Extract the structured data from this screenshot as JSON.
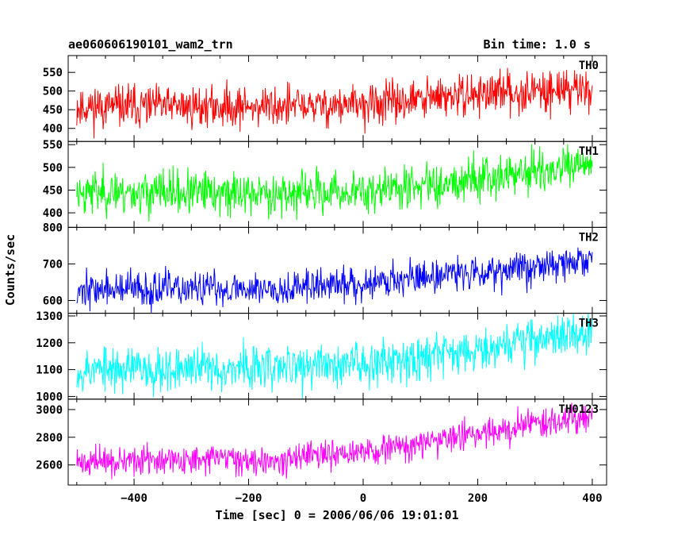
{
  "header": {
    "left_title": "ae060606190101_wam2_trn",
    "right_title": "Bin time: 1.0 s"
  },
  "chart_data": {
    "type": "line",
    "title": "ae060606190101_wam2_trn",
    "bin_time": "Bin time: 1.0 s",
    "xlabel": "Time [sec] 0 = 2006/06/06 19:01:01",
    "ylabel": "Counts/sec",
    "x_range": [
      -500,
      400
    ],
    "xlim": [
      -515,
      425
    ],
    "x_ticks": [
      -400,
      -200,
      0,
      200,
      400
    ],
    "x_tick_labels": [
      "−400",
      "−200",
      "0",
      "200",
      "400"
    ],
    "grid": false,
    "legend": "none",
    "panels": [
      {
        "name": "TH0",
        "color": "#ff0000",
        "ylim": [
          365,
          595
        ],
        "yticks": [
          400,
          450,
          500,
          550
        ],
        "ytick_labels": [
          "400",
          "450",
          "500",
          "550"
        ],
        "trend_x": [
          -500,
          -300,
          -100,
          0,
          100,
          200,
          300,
          400
        ],
        "trend_y": [
          458,
          458,
          460,
          462,
          477,
          492,
          500,
          510
        ],
        "noise_sd": 28,
        "seed": 11
      },
      {
        "name": "TH1",
        "color": "#00ff00",
        "ylim": [
          368,
          557
        ],
        "yticks": [
          400,
          450,
          500,
          550
        ],
        "ytick_labels": [
          "400",
          "450",
          "500",
          "550"
        ],
        "trend_x": [
          -500,
          -300,
          -100,
          0,
          100,
          200,
          300,
          400
        ],
        "trend_y": [
          447,
          443,
          443,
          447,
          460,
          478,
          490,
          502
        ],
        "noise_sd": 24,
        "seed": 23
      },
      {
        "name": "TH2",
        "color": "#0000ff",
        "ylim": [
          565,
          800
        ],
        "yticks": [
          600,
          700,
          800
        ],
        "ytick_labels": [
          "600",
          "700",
          "800"
        ],
        "trend_x": [
          -500,
          -300,
          -100,
          0,
          100,
          200,
          300,
          400
        ],
        "trend_y": [
          630,
          630,
          637,
          648,
          665,
          680,
          692,
          710
        ],
        "noise_sd": 24,
        "seed": 37
      },
      {
        "name": "TH3",
        "color": "#00ffff",
        "ylim": [
          990,
          1310
        ],
        "yticks": [
          1000,
          1100,
          1200,
          1300
        ],
        "ytick_labels": [
          "1000",
          "1100",
          "1200",
          "1300"
        ],
        "trend_x": [
          -500,
          -300,
          -100,
          0,
          100,
          200,
          300,
          400
        ],
        "trend_y": [
          1100,
          1105,
          1110,
          1128,
          1150,
          1180,
          1215,
          1240
        ],
        "noise_sd": 42,
        "seed": 53
      },
      {
        "name": "TH0123",
        "color": "#ff00ff",
        "ylim": [
          2455,
          3075
        ],
        "yticks": [
          2600,
          2800,
          3000
        ],
        "ytick_labels": [
          "2600",
          "2800",
          "3000"
        ],
        "trend_x": [
          -500,
          -300,
          -100,
          0,
          100,
          200,
          300,
          400
        ],
        "trend_y": [
          2620,
          2635,
          2650,
          2690,
          2750,
          2830,
          2900,
          2960
        ],
        "noise_sd": 52,
        "seed": 71
      }
    ]
  }
}
